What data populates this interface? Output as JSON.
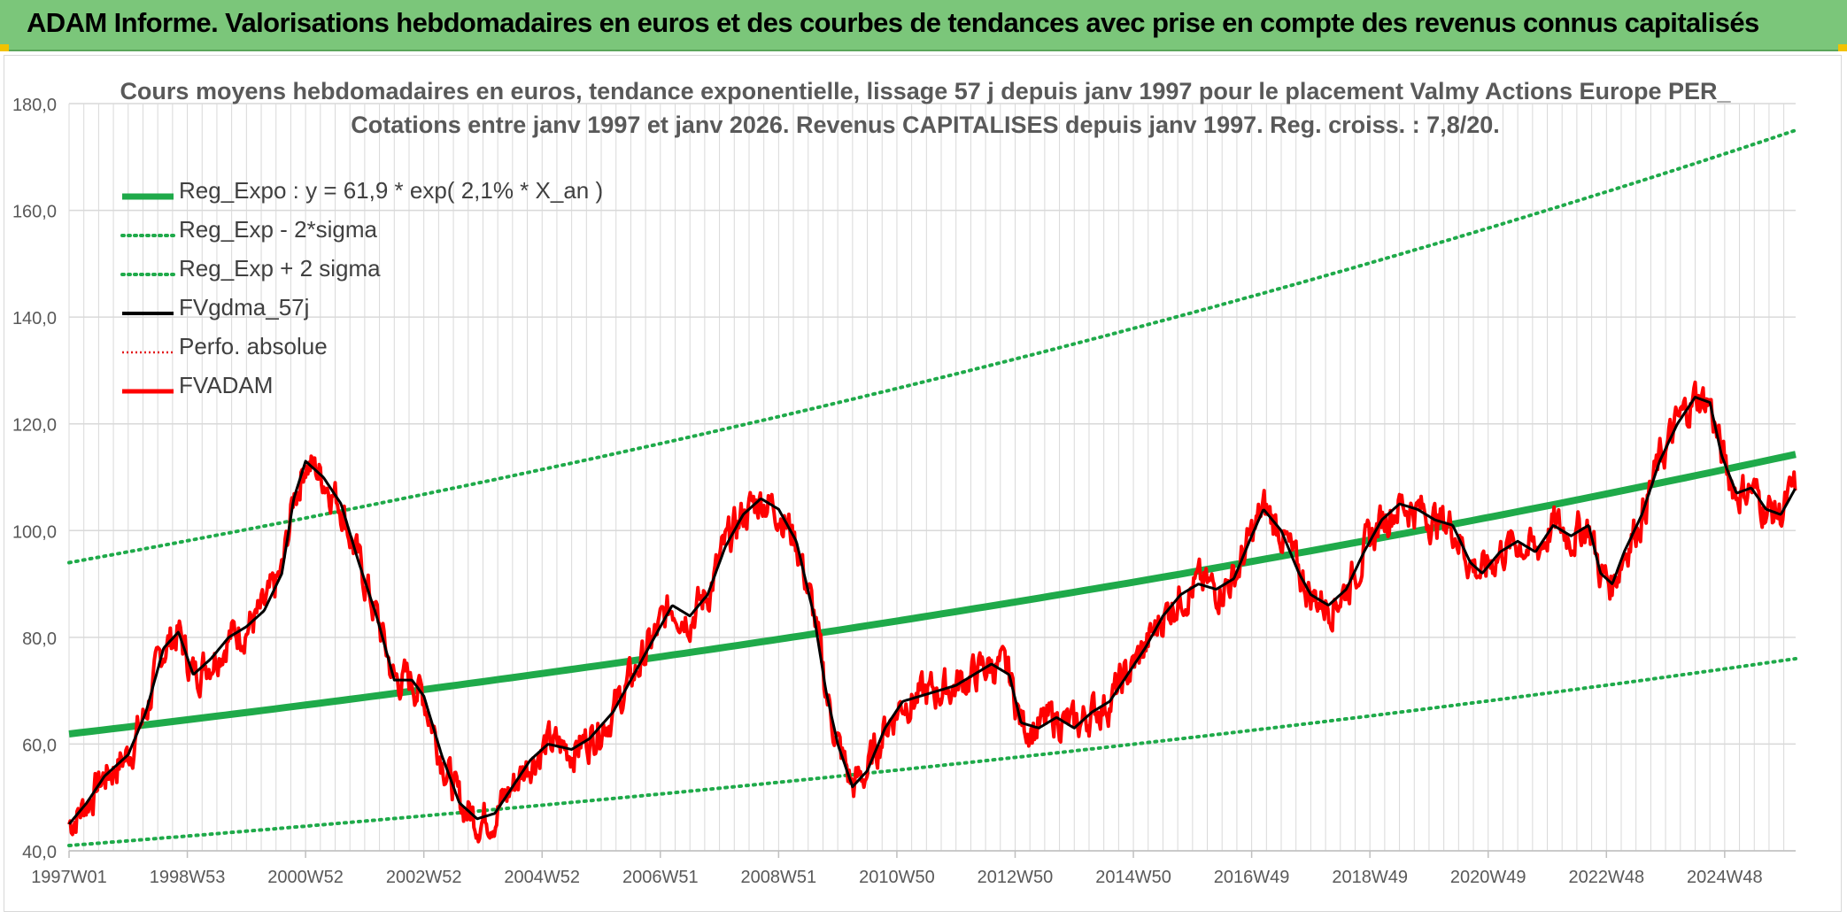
{
  "header": {
    "title": "ADAM Informe. Valorisations hebdomadaires en euros et des courbes de tendances avec prise en compte des revenus connus capitalisés"
  },
  "colors": {
    "banner": "#7bc67a",
    "trend": "#1faa4a",
    "sigma": "#1faa4a",
    "smoothed": "#000000",
    "perf": "#e31a1c",
    "price": "#ff0000",
    "grid": "#d9d9d9",
    "axis_text": "#595959"
  },
  "chart_data": {
    "type": "line",
    "title_lines": [
      "Cours moyens hebdomadaires en euros, tendance exponentielle, lissage 57 j depuis janv 1997 pour le placement Valmy Actions Europe PER_",
      "Cotations entre janv 1997 et janv 2026. Revenus CAPITALISES depuis janv 1997. Reg. croiss. : 7,8/20."
    ],
    "xlabel": "",
    "ylabel": "",
    "x_range": [
      1997.0,
      2026.2
    ],
    "ylim": [
      40,
      180
    ],
    "y_ticks": [
      "40,0",
      "60,0",
      "80,0",
      "100,0",
      "120,0",
      "140,0",
      "160,0",
      "180,0"
    ],
    "x_tick_labels": [
      "1997W01",
      "1998W53",
      "2000W52",
      "2002W52",
      "2004W52",
      "2006W51",
      "2008W51",
      "2010W50",
      "2012W50",
      "2014W50",
      "2016W49",
      "2018W49",
      "2020W49",
      "2022W48",
      "2024W48"
    ],
    "x_tick_years": [
      1997.0,
      1999.0,
      2001.0,
      2003.0,
      2005.0,
      2007.0,
      2009.0,
      2011.0,
      2013.0,
      2015.0,
      2017.0,
      2019.0,
      2021.0,
      2023.0,
      2025.0
    ],
    "grid": true,
    "legend_position": "top-left",
    "regression": {
      "a": 61.9,
      "rate": 0.021,
      "x_start": 1997.0,
      "x_end": 2026.2
    },
    "sigma_bands": {
      "lower": {
        "start": 41,
        "end": 76
      },
      "upper": {
        "start": 94,
        "end": 175
      }
    },
    "series": [
      {
        "name": "Reg_Expo : y = 61,9 * exp( 2,1% *  X_an )",
        "style": "solid-thick-green"
      },
      {
        "name": "Reg_Exp - 2*sigma",
        "style": "dotted-green"
      },
      {
        "name": "Reg_Exp + 2 sigma",
        "style": "dotted-green"
      },
      {
        "name": "FVgdma_57j",
        "style": "solid-black",
        "points": [
          [
            1997.0,
            45
          ],
          [
            1997.3,
            49
          ],
          [
            1997.6,
            54
          ],
          [
            1998.0,
            58
          ],
          [
            1998.3,
            66
          ],
          [
            1998.6,
            78
          ],
          [
            1998.85,
            81
          ],
          [
            1999.1,
            73
          ],
          [
            1999.4,
            76
          ],
          [
            1999.7,
            80
          ],
          [
            2000.0,
            82
          ],
          [
            2000.3,
            85
          ],
          [
            2000.6,
            92
          ],
          [
            2000.8,
            106
          ],
          [
            2001.0,
            113
          ],
          [
            2001.3,
            110
          ],
          [
            2001.6,
            105
          ],
          [
            2001.9,
            94
          ],
          [
            2002.2,
            84
          ],
          [
            2002.5,
            72
          ],
          [
            2002.8,
            72
          ],
          [
            2003.0,
            69
          ],
          [
            2003.3,
            58
          ],
          [
            2003.6,
            49
          ],
          [
            2003.9,
            46
          ],
          [
            2004.2,
            47
          ],
          [
            2004.5,
            52
          ],
          [
            2004.8,
            57
          ],
          [
            2005.1,
            60
          ],
          [
            2005.5,
            59
          ],
          [
            2005.8,
            61
          ],
          [
            2006.2,
            66
          ],
          [
            2006.5,
            72
          ],
          [
            2006.9,
            80
          ],
          [
            2007.2,
            86
          ],
          [
            2007.5,
            84
          ],
          [
            2007.8,
            88
          ],
          [
            2008.1,
            97
          ],
          [
            2008.4,
            103
          ],
          [
            2008.7,
            106
          ],
          [
            2009.0,
            104
          ],
          [
            2009.3,
            98
          ],
          [
            2009.6,
            84
          ],
          [
            2009.8,
            70
          ],
          [
            2010.0,
            60
          ],
          [
            2010.25,
            52
          ],
          [
            2010.5,
            55
          ],
          [
            2010.8,
            63
          ],
          [
            2011.1,
            68
          ],
          [
            2011.4,
            69
          ],
          [
            2011.7,
            70
          ],
          [
            2012.0,
            71
          ],
          [
            2012.3,
            73
          ],
          [
            2012.6,
            75
          ],
          [
            2012.9,
            73
          ],
          [
            2013.1,
            64
          ],
          [
            2013.4,
            63
          ],
          [
            2013.7,
            65
          ],
          [
            2014.0,
            63
          ],
          [
            2014.3,
            66
          ],
          [
            2014.6,
            68
          ],
          [
            2014.9,
            73
          ],
          [
            2015.2,
            78
          ],
          [
            2015.5,
            84
          ],
          [
            2015.8,
            88
          ],
          [
            2016.1,
            90
          ],
          [
            2016.4,
            89
          ],
          [
            2016.7,
            91
          ],
          [
            2017.0,
            99
          ],
          [
            2017.2,
            104
          ],
          [
            2017.5,
            100
          ],
          [
            2017.8,
            92
          ],
          [
            2018.0,
            88
          ],
          [
            2018.3,
            86
          ],
          [
            2018.6,
            89
          ],
          [
            2018.9,
            96
          ],
          [
            2019.2,
            102
          ],
          [
            2019.5,
            105
          ],
          [
            2019.8,
            104
          ],
          [
            2020.1,
            102
          ],
          [
            2020.4,
            101
          ],
          [
            2020.7,
            94
          ],
          [
            2020.9,
            92
          ],
          [
            2021.2,
            96
          ],
          [
            2021.5,
            98
          ],
          [
            2021.8,
            96
          ],
          [
            2022.1,
            101
          ],
          [
            2022.4,
            99
          ],
          [
            2022.7,
            101
          ],
          [
            2022.9,
            92
          ],
          [
            2023.1,
            90
          ],
          [
            2023.3,
            96
          ],
          [
            2023.6,
            103
          ],
          [
            2023.9,
            113
          ],
          [
            2024.2,
            120
          ],
          [
            2024.5,
            125
          ],
          [
            2024.75,
            124
          ],
          [
            2024.95,
            114
          ],
          [
            2025.2,
            107
          ],
          [
            2025.45,
            108
          ],
          [
            2025.7,
            104
          ],
          [
            2025.95,
            103
          ],
          [
            2026.2,
            108
          ]
        ]
      },
      {
        "name": "Perfo. absolue",
        "style": "dotted-red"
      },
      {
        "name": "FVADAM",
        "style": "solid-red"
      }
    ]
  }
}
